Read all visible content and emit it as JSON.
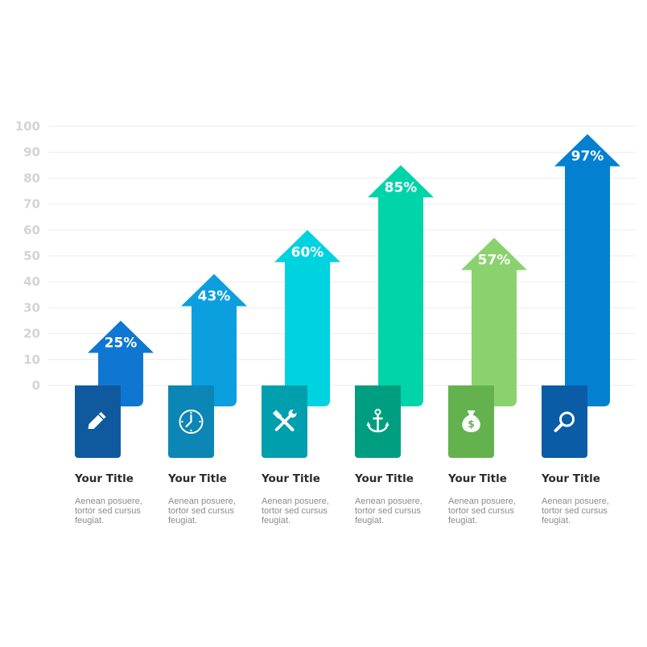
{
  "chart_data": {
    "type": "bar",
    "ylim": [
      0,
      100
    ],
    "yticks": [
      0,
      10,
      20,
      30,
      40,
      50,
      60,
      70,
      80,
      90,
      100
    ],
    "grid": true,
    "bars": [
      {
        "value": 25,
        "label": "25%",
        "title": "Your Title",
        "desc": [
          "Aenean posuere,",
          "tortor sed cursus",
          "feugiat."
        ],
        "color": "#0f77d1",
        "tab_color": "#0f5a9f",
        "icon": "pencil-icon"
      },
      {
        "value": 43,
        "label": "43%",
        "title": "Your Title",
        "desc": [
          "Aenean posuere,",
          "tortor sed cursus",
          "feugiat."
        ],
        "color": "#0b9fe0",
        "tab_color": "#0b86b5",
        "icon": "clock-icon"
      },
      {
        "value": 60,
        "label": "60%",
        "title": "Your Title",
        "desc": [
          "Aenean posuere,",
          "tortor sed cursus",
          "feugiat."
        ],
        "color": "#00d3e0",
        "tab_color": "#009fae",
        "icon": "tools-icon"
      },
      {
        "value": 85,
        "label": "85%",
        "title": "Your Title",
        "desc": [
          "Aenean posuere,",
          "tortor sed cursus",
          "feugiat."
        ],
        "color": "#00d4a8",
        "tab_color": "#009e80",
        "icon": "anchor-icon"
      },
      {
        "value": 57,
        "label": "57%",
        "title": "Your Title",
        "desc": [
          "Aenean posuere,",
          "tortor sed cursus",
          "feugiat."
        ],
        "color": "#8ad26e",
        "tab_color": "#63b24e",
        "icon": "money-bag-icon"
      },
      {
        "value": 97,
        "label": "97%",
        "title": "Your Title",
        "desc": [
          "Aenean posuere,",
          "tortor sed cursus",
          "feugiat."
        ],
        "color": "#0480d1",
        "tab_color": "#0b5ca6",
        "icon": "magnifier-icon"
      }
    ]
  }
}
